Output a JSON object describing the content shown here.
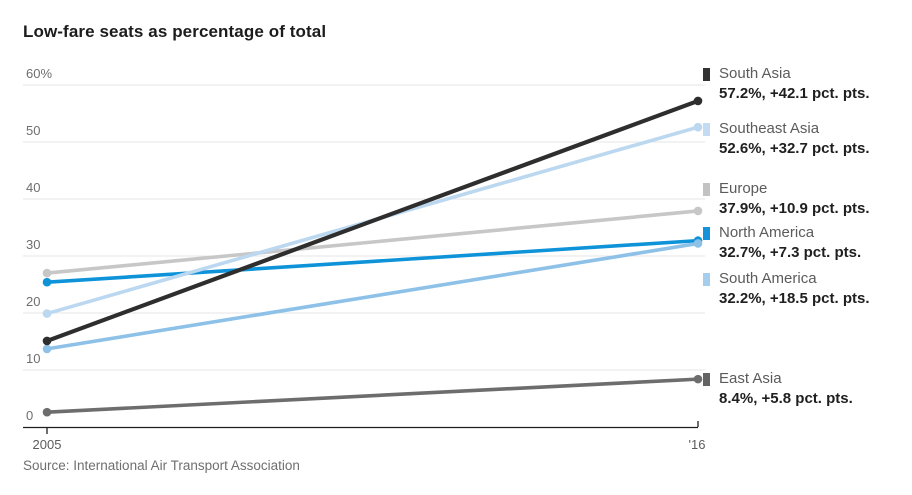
{
  "title": "Low-fare seats as percentage of total",
  "source": "Source: International Air Transport Association",
  "chart_data": {
    "type": "line",
    "x_values": [
      2005,
      2016
    ],
    "x_tick_labels": [
      "2005",
      "'16"
    ],
    "ylim": [
      0,
      60
    ],
    "yticks": [
      0,
      10,
      20,
      30,
      40,
      50,
      60
    ],
    "ytick_labels": [
      "0",
      "10",
      "20",
      "30",
      "40",
      "50",
      "60%"
    ],
    "grid": true,
    "legend_position": "right",
    "series": [
      {
        "name": "South Asia",
        "values": [
          15.1,
          57.2
        ],
        "end_label": "57.2%, +42.1 pct. pts.",
        "color": "#2e2e2e",
        "marker_color": "#333333"
      },
      {
        "name": "Southeast Asia",
        "values": [
          19.9,
          52.6
        ],
        "end_label": "52.6%, +32.7 pct. pts.",
        "color": "#bcd8f0",
        "marker_color": "#c3dcf2"
      },
      {
        "name": "Europe",
        "values": [
          27.0,
          37.9
        ],
        "end_label": "37.9%, +10.9 pct. pts.",
        "color": "#c7c7c7",
        "marker_color": "#c2c2c2"
      },
      {
        "name": "North America",
        "values": [
          25.4,
          32.7
        ],
        "end_label": "32.7%, +7.3 pct. pts.",
        "color": "#0e93d9",
        "marker_color": "#1493d8"
      },
      {
        "name": "South America",
        "values": [
          13.7,
          32.2
        ],
        "end_label": "32.2%, +18.5 pct. pts.",
        "color": "#8dc1e8",
        "marker_color": "#a5cdec"
      },
      {
        "name": "East Asia",
        "values": [
          2.6,
          8.4
        ],
        "end_label": "8.4%, +5.8 pct. pts.",
        "color": "#6d6d6d",
        "marker_color": "#636363"
      }
    ]
  }
}
